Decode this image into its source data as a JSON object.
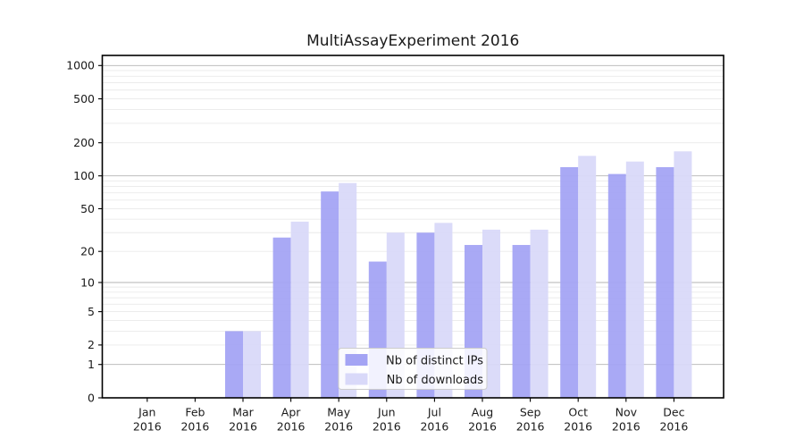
{
  "chart_data": {
    "type": "bar",
    "title": "MultiAssayExperiment 2016",
    "categories": [
      "Jan",
      "Feb",
      "Mar",
      "Apr",
      "May",
      "Jun",
      "Jul",
      "Aug",
      "Sep",
      "Oct",
      "Nov",
      "Dec"
    ],
    "x_axis": {
      "label_line2": "2016"
    },
    "series": [
      {
        "name": "Nb of distinct IPs",
        "color": "#a4a4f4",
        "values": [
          0,
          0,
          3,
          27,
          72,
          16,
          30,
          23,
          23,
          120,
          104,
          120
        ]
      },
      {
        "name": "Nb of downloads",
        "color": "#d9d9f9",
        "values": [
          0,
          0,
          3,
          38,
          86,
          30,
          37,
          32,
          32,
          152,
          135,
          167
        ]
      }
    ],
    "y_axis": {
      "scale": "log1p",
      "ticks": [
        0,
        1,
        2,
        5,
        10,
        20,
        50,
        100,
        200,
        500,
        1000
      ],
      "major_gridlines": [
        1,
        10,
        100,
        1000
      ],
      "minor_gridline_decades": [
        1,
        10,
        100
      ],
      "ylim_top": 1230
    },
    "legend": {
      "entries": [
        "Nb of distinct IPs",
        "Nb of downloads"
      ],
      "position": "lower-center"
    },
    "grid": true,
    "colors": {
      "background": "#ffffff",
      "frame": "#000000",
      "grid_major": "#b3b3b3",
      "grid_minor": "#eaeaea",
      "tick": "#000000",
      "legend_border": "#cccccc",
      "legend_background": "#ffffff"
    }
  }
}
